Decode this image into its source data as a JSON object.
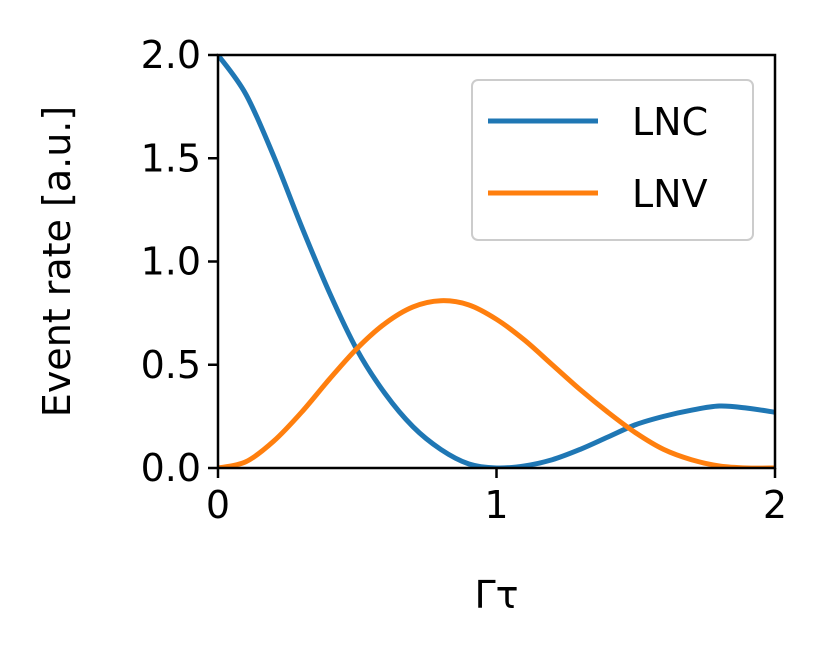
{
  "chart_data": {
    "type": "line",
    "title": "",
    "xlabel": "Γτ",
    "ylabel": "Event rate [a.u.]",
    "xlim": [
      0,
      2
    ],
    "ylim": [
      0,
      2.0
    ],
    "xticks": [
      0,
      1,
      2
    ],
    "xtick_labels": [
      "0",
      "1",
      "2"
    ],
    "yticks": [
      0,
      0.5,
      1.0,
      1.5,
      2.0
    ],
    "ytick_labels": [
      "0.0",
      "0.5",
      "1.0",
      "1.5",
      "2.0"
    ],
    "grid": false,
    "legend_position": "upper right",
    "series": [
      {
        "name": "LNC",
        "color": "#1f77b4",
        "x": [
          0,
          0.1,
          0.2,
          0.3,
          0.4,
          0.5,
          0.6,
          0.7,
          0.8,
          0.9,
          1.0,
          1.1,
          1.2,
          1.3,
          1.4,
          1.5,
          1.6,
          1.7,
          1.8,
          1.9,
          2.0
        ],
        "y": [
          2.0,
          1.81,
          1.51,
          1.17,
          0.85,
          0.57,
          0.36,
          0.2,
          0.09,
          0.02,
          0.0,
          0.01,
          0.04,
          0.09,
          0.15,
          0.21,
          0.25,
          0.28,
          0.3,
          0.29,
          0.27
        ]
      },
      {
        "name": "LNV",
        "color": "#ff7f0e",
        "x": [
          0,
          0.1,
          0.2,
          0.3,
          0.4,
          0.5,
          0.6,
          0.7,
          0.8,
          0.9,
          1.0,
          1.1,
          1.2,
          1.3,
          1.4,
          1.5,
          1.6,
          1.7,
          1.8,
          1.9,
          2.0
        ],
        "y": [
          0.0,
          0.03,
          0.13,
          0.27,
          0.43,
          0.58,
          0.7,
          0.78,
          0.81,
          0.79,
          0.72,
          0.62,
          0.5,
          0.38,
          0.27,
          0.17,
          0.09,
          0.04,
          0.01,
          0.0,
          0.0
        ]
      }
    ]
  }
}
